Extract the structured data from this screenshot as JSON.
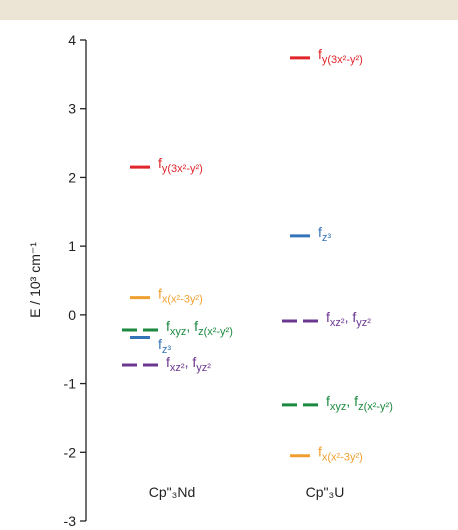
{
  "chart_data": {
    "type": "energy-levels",
    "ylabel": "E / 10³ cm⁻¹",
    "ylim": [
      -3,
      4
    ],
    "yticks": [
      -3,
      -2,
      -1,
      0,
      1,
      2,
      3,
      4
    ],
    "groups": [
      {
        "name": "Cp\"₃Nd",
        "levels": [
          {
            "value": 2.15,
            "color": "#e0262c",
            "dashed": false,
            "label": [
              "f",
              "y(3x²-y²)"
            ]
          },
          {
            "value": 0.25,
            "color": "#f0a030",
            "dashed": false,
            "label": [
              "f",
              "x(x²-3y²)"
            ]
          },
          {
            "value": -0.22,
            "color": "#1b8a3f",
            "dashed": true,
            "label": [
              "f",
              "xyz",
              ", f",
              "z(x²-y²)"
            ]
          },
          {
            "value": -0.33,
            "color": "#3474b8",
            "dashed": false,
            "label": [
              "f",
              "z³"
            ]
          },
          {
            "value": -0.73,
            "color": "#6b3791",
            "dashed": true,
            "label": [
              "f",
              "xz²",
              ", f",
              "yz²"
            ]
          }
        ]
      },
      {
        "name": "Cp\"₃U",
        "levels": [
          {
            "value": 3.74,
            "color": "#e0262c",
            "dashed": false,
            "label": [
              "f",
              "y(3x²-y²)"
            ]
          },
          {
            "value": 1.15,
            "color": "#3474b8",
            "dashed": false,
            "label": [
              "f",
              "z³"
            ]
          },
          {
            "value": -0.09,
            "color": "#6b3791",
            "dashed": true,
            "label": [
              "f",
              "xz²",
              ", f",
              "yz²"
            ]
          },
          {
            "value": -1.31,
            "color": "#1b8a3f",
            "dashed": true,
            "label": [
              "f",
              "xyz",
              ", f",
              "z(x²-y²)"
            ]
          },
          {
            "value": -2.05,
            "color": "#f0a030",
            "dashed": false,
            "label": [
              "f",
              "x(x²-3y²)"
            ]
          }
        ]
      }
    ]
  }
}
